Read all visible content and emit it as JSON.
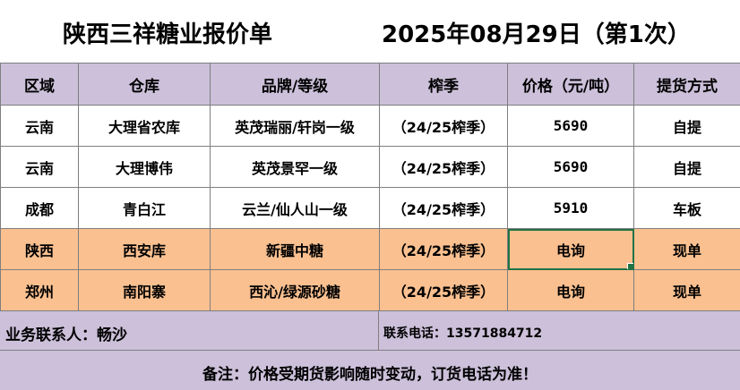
{
  "title": {
    "company": "陕西三祥糖业报价单",
    "date": "2025年08月29日（第1次）"
  },
  "table": {
    "headers": [
      "区域",
      "仓库",
      "品牌/等级",
      "榨季",
      "价格（元/吨）",
      "提货方式"
    ],
    "rows": [
      [
        "云南",
        "大理省农库",
        "英茂瑞丽/轩岗一级",
        "（24/25榨季）",
        "5690",
        "自提"
      ],
      [
        "云南",
        "大理博伟",
        "英茂景罕一级",
        "（24/25榨季）",
        "5690",
        "自提"
      ],
      [
        "成都",
        "青白江",
        "云兰/仙人山一级",
        "（24/25榨季）",
        "5910",
        "车板"
      ],
      [
        "陕西",
        "西安库",
        "新疆中糖",
        "（24/25榨季）",
        "电询",
        "现单"
      ],
      [
        "郑州",
        "南阳寨",
        "西沁/绿源砂糖",
        "（24/25榨季）",
        "电询",
        "现单"
      ]
    ]
  },
  "contact": {
    "person": "业务联系人：畅沙",
    "phone": "联系电话：13571884712"
  },
  "note": "备注：价格受期货影响随时变动，订货电话为准！",
  "colors": {
    "header_bg": "#ccc0da",
    "highlight_bg": "#fac090",
    "selection": "#217346"
  }
}
